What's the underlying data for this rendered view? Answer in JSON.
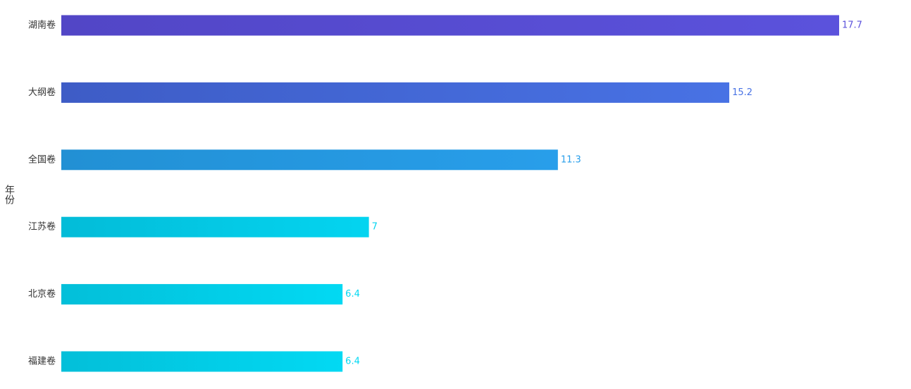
{
  "chart_data": {
    "type": "hbar",
    "y_label": "年份",
    "categories": [
      "湖南卷",
      "大纲卷",
      "全国卷",
      "江苏卷",
      "北京卷",
      "福建卷"
    ],
    "values": [
      17.7,
      15.2,
      11.3,
      7,
      6.4,
      6.4
    ],
    "colors": [
      [
        "#5246c6",
        "#5b52dc"
      ],
      [
        "#3e5cc6",
        "#4872e4"
      ],
      [
        "#2290d4",
        "#289eea"
      ],
      [
        "#03bcd8",
        "#04d4f0"
      ],
      [
        "#03bfd9",
        "#02d9f3"
      ],
      [
        "#03bfd9",
        "#02d9f3"
      ]
    ]
  }
}
